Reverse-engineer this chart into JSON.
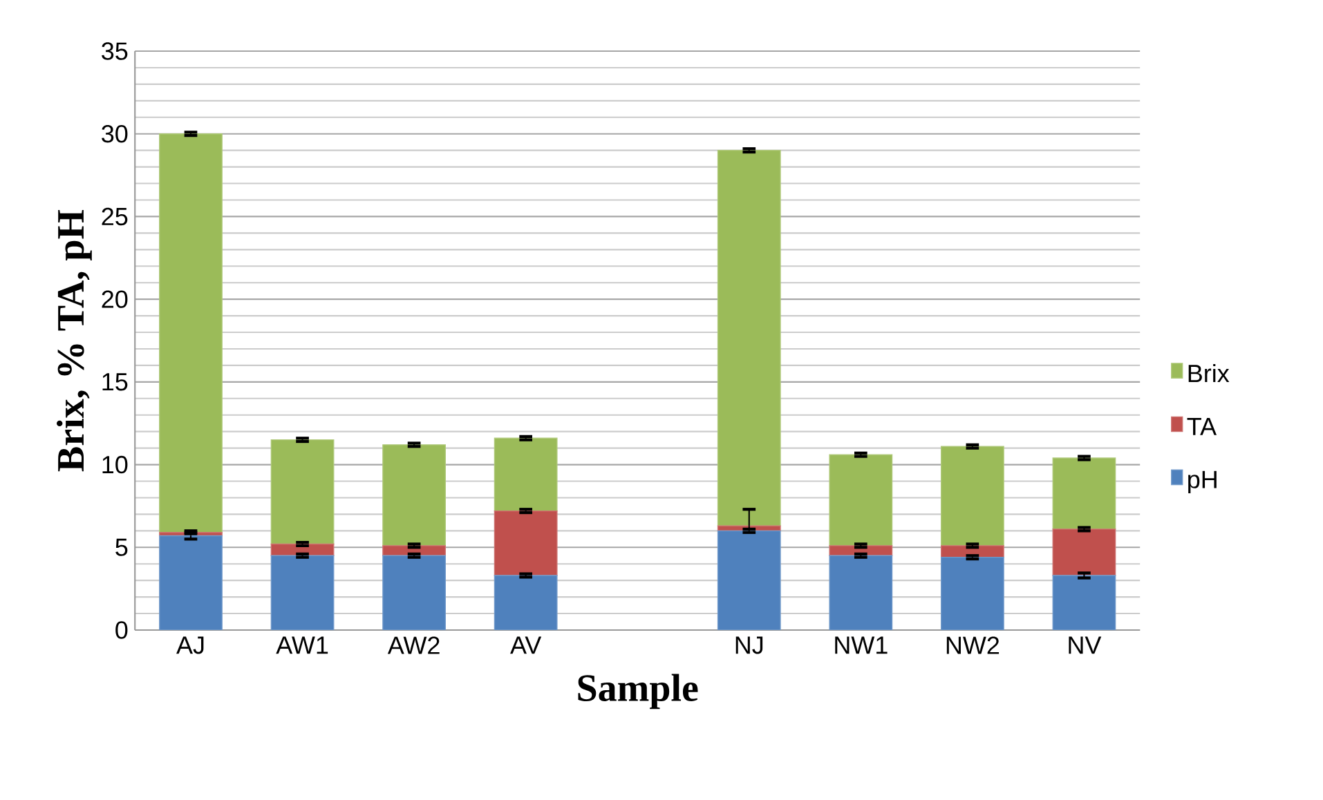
{
  "chart_data": {
    "type": "bar",
    "stacked": true,
    "xlabel": "Sample",
    "ylabel": "Brix, % TA, pH",
    "categories": [
      "AJ",
      "AW1",
      "AW2",
      "AV",
      null,
      "NJ",
      "NW1",
      "NW2",
      "NV"
    ],
    "series": [
      {
        "name": "pH",
        "color": "#4f81bd",
        "values": [
          5.7,
          4.5,
          4.5,
          3.3,
          null,
          6.0,
          4.5,
          4.4,
          3.3
        ],
        "errors": [
          0.2,
          0.1,
          0.1,
          0.1,
          null,
          0.1,
          0.1,
          0.1,
          0.15
        ]
      },
      {
        "name": "TA",
        "color": "#c0504d",
        "values": [
          0.2,
          0.7,
          0.6,
          3.9,
          null,
          0.3,
          0.6,
          0.7,
          2.8
        ],
        "errors": [
          0.1,
          0.1,
          0.1,
          0.1,
          null,
          1.0,
          0.1,
          0.1,
          0.1
        ]
      },
      {
        "name": "Brix",
        "color": "#9bbb59",
        "values": [
          24.1,
          6.3,
          6.1,
          4.4,
          null,
          22.7,
          5.5,
          6.0,
          4.3
        ],
        "errors": [
          0.1,
          0.1,
          0.1,
          0.1,
          null,
          0.1,
          0.1,
          0.1,
          0.1
        ]
      }
    ],
    "ylim": [
      0,
      35
    ],
    "yticks": [
      0,
      5,
      10,
      15,
      20,
      25,
      30,
      35
    ],
    "grid": "y",
    "legend": "right"
  }
}
